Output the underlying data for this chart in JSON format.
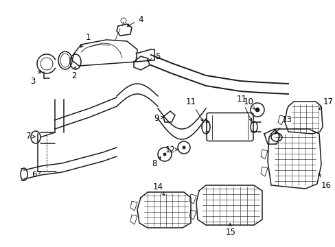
{
  "bg_color": "#ffffff",
  "line_color": "#1a1a1a",
  "fig_width": 4.89,
  "fig_height": 3.6,
  "dpi": 100,
  "lw_main": 1.1,
  "lw_thin": 0.6,
  "label_fontsize": 8.5
}
